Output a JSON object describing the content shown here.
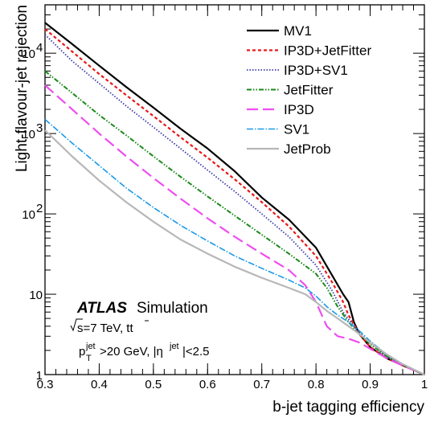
{
  "chart_data": {
    "type": "line",
    "xlabel": "b-jet tagging efficiency",
    "ylabel": "Light-flavour-jet rejection",
    "xlim": [
      0.3,
      1.0
    ],
    "ylim": [
      1,
      40000
    ],
    "yscale": "log",
    "x_ticks": [
      "0.3",
      "0.4",
      "0.5",
      "0.6",
      "0.7",
      "0.8",
      "0.9",
      "1"
    ],
    "y_ticks": [
      "1",
      "10",
      "10",
      "10",
      "10"
    ],
    "y_tick_exponents": [
      "",
      "",
      "2",
      "3",
      "4"
    ],
    "legend_position": "top-right",
    "annotations": {
      "atlas": "ATLAS",
      "simulation": "Simulation",
      "energy": "s=7 TeV,  tt",
      "cut_p": "p",
      "cut_p_sup": "jet",
      "cut_p_sub": "T",
      "cut_mid": ">20 GeV, |η",
      "cut_eta_sup": "jet",
      "cut_end": "|<2.5"
    },
    "series": [
      {
        "name": "MV1",
        "color": "#000000",
        "dash": "",
        "width": 2.2,
        "points": [
          [
            0.3,
            24000
          ],
          [
            0.35,
            13000
          ],
          [
            0.4,
            7000
          ],
          [
            0.45,
            3800
          ],
          [
            0.5,
            2100
          ],
          [
            0.55,
            1150
          ],
          [
            0.6,
            650
          ],
          [
            0.65,
            340
          ],
          [
            0.7,
            160
          ],
          [
            0.75,
            85
          ],
          [
            0.8,
            38
          ],
          [
            0.85,
            10
          ],
          [
            0.86,
            8
          ],
          [
            0.87,
            4.5
          ],
          [
            0.88,
            3.2
          ],
          [
            0.9,
            2.2
          ],
          [
            0.93,
            1.6
          ],
          [
            0.96,
            1.3
          ],
          [
            1.0,
            1.0
          ]
        ]
      },
      {
        "name": "IP3D+JetFitter",
        "color": "#e8191a",
        "dash": "4,3",
        "width": 2.2,
        "points": [
          [
            0.3,
            20000
          ],
          [
            0.35,
            10500
          ],
          [
            0.4,
            5500
          ],
          [
            0.45,
            3000
          ],
          [
            0.5,
            1650
          ],
          [
            0.55,
            900
          ],
          [
            0.6,
            500
          ],
          [
            0.65,
            270
          ],
          [
            0.7,
            140
          ],
          [
            0.75,
            70
          ],
          [
            0.8,
            30
          ],
          [
            0.83,
            14
          ],
          [
            0.85,
            8
          ],
          [
            0.86,
            5.5
          ],
          [
            0.88,
            3.2
          ],
          [
            0.9,
            2.2
          ],
          [
            0.93,
            1.6
          ],
          [
            0.96,
            1.3
          ],
          [
            1.0,
            1.0
          ]
        ]
      },
      {
        "name": "IP3D+SV1",
        "color": "#3a3aa8",
        "dash": "1.5,2",
        "width": 1.8,
        "points": [
          [
            0.3,
            17000
          ],
          [
            0.35,
            8000
          ],
          [
            0.4,
            4200
          ],
          [
            0.45,
            2200
          ],
          [
            0.5,
            1200
          ],
          [
            0.55,
            650
          ],
          [
            0.6,
            350
          ],
          [
            0.65,
            190
          ],
          [
            0.7,
            100
          ],
          [
            0.75,
            52
          ],
          [
            0.8,
            23
          ],
          [
            0.83,
            11
          ],
          [
            0.85,
            6
          ],
          [
            0.87,
            4
          ],
          [
            0.9,
            2.4
          ],
          [
            0.93,
            1.7
          ],
          [
            0.96,
            1.3
          ],
          [
            1.0,
            1.0
          ]
        ]
      },
      {
        "name": "JetFitter",
        "color": "#1b8a1b",
        "dash": "6,2,1.5,2,1.5,2",
        "width": 2,
        "points": [
          [
            0.3,
            6000
          ],
          [
            0.35,
            3200
          ],
          [
            0.4,
            1700
          ],
          [
            0.45,
            950
          ],
          [
            0.5,
            520
          ],
          [
            0.55,
            290
          ],
          [
            0.6,
            165
          ],
          [
            0.65,
            95
          ],
          [
            0.7,
            55
          ],
          [
            0.75,
            32
          ],
          [
            0.8,
            18
          ],
          [
            0.82,
            12
          ],
          [
            0.84,
            7
          ],
          [
            0.86,
            4.5
          ],
          [
            0.88,
            3.2
          ],
          [
            0.9,
            2.4
          ],
          [
            0.93,
            1.7
          ],
          [
            0.96,
            1.3
          ],
          [
            1.0,
            1.0
          ]
        ]
      },
      {
        "name": "IP3D",
        "color": "#ee4ef0",
        "dash": "14,6",
        "width": 2.2,
        "points": [
          [
            0.3,
            4000
          ],
          [
            0.35,
            2000
          ],
          [
            0.4,
            1000
          ],
          [
            0.45,
            520
          ],
          [
            0.5,
            280
          ],
          [
            0.55,
            155
          ],
          [
            0.6,
            88
          ],
          [
            0.65,
            52
          ],
          [
            0.7,
            32
          ],
          [
            0.75,
            20
          ],
          [
            0.78,
            13
          ],
          [
            0.8,
            8
          ],
          [
            0.82,
            4
          ],
          [
            0.84,
            3
          ],
          [
            0.86,
            2.8
          ],
          [
            0.88,
            2.5
          ],
          [
            0.9,
            2.1
          ],
          [
            0.93,
            1.6
          ],
          [
            0.96,
            1.3
          ],
          [
            1.0,
            1.0
          ]
        ]
      },
      {
        "name": "SV1",
        "color": "#1a9ae6",
        "dash": "8,2,1.5,2",
        "width": 1.6,
        "points": [
          [
            0.3,
            1500
          ],
          [
            0.35,
            760
          ],
          [
            0.4,
            400
          ],
          [
            0.45,
            210
          ],
          [
            0.5,
            120
          ],
          [
            0.55,
            72
          ],
          [
            0.6,
            46
          ],
          [
            0.65,
            30
          ],
          [
            0.7,
            21
          ],
          [
            0.75,
            15
          ],
          [
            0.78,
            12
          ],
          [
            0.8,
            9.5
          ],
          [
            0.82,
            7
          ],
          [
            0.84,
            5.5
          ],
          [
            0.86,
            4.5
          ],
          [
            0.88,
            3.5
          ],
          [
            0.9,
            2.6
          ],
          [
            0.93,
            1.8
          ],
          [
            0.96,
            1.35
          ],
          [
            1.0,
            1.0
          ]
        ]
      },
      {
        "name": "JetProb",
        "color": "#b7b7b7",
        "dash": "",
        "width": 2.2,
        "points": [
          [
            0.3,
            1100
          ],
          [
            0.35,
            520
          ],
          [
            0.4,
            260
          ],
          [
            0.45,
            140
          ],
          [
            0.5,
            80
          ],
          [
            0.55,
            48
          ],
          [
            0.6,
            32
          ],
          [
            0.65,
            22
          ],
          [
            0.7,
            16
          ],
          [
            0.75,
            12
          ],
          [
            0.78,
            10
          ],
          [
            0.8,
            8
          ],
          [
            0.82,
            6.2
          ],
          [
            0.84,
            5
          ],
          [
            0.86,
            4
          ],
          [
            0.88,
            3.2
          ],
          [
            0.9,
            2.5
          ],
          [
            0.93,
            1.8
          ],
          [
            0.96,
            1.35
          ],
          [
            1.0,
            1.0
          ]
        ]
      }
    ]
  }
}
